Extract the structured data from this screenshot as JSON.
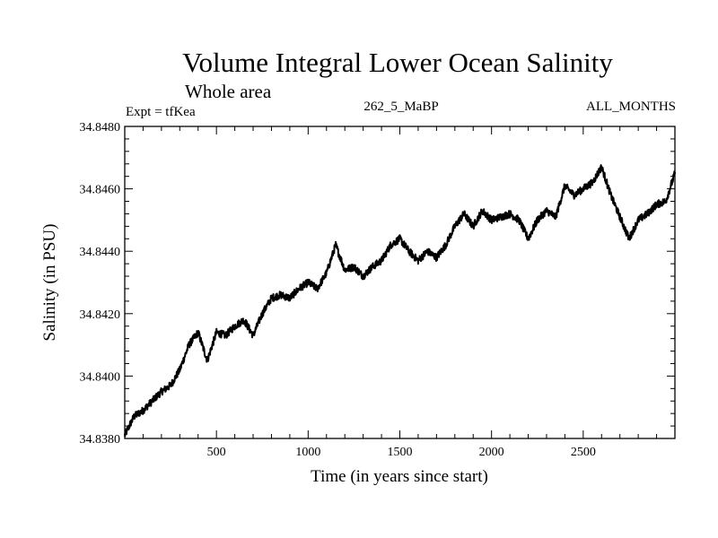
{
  "chart_data": {
    "type": "line",
    "title": "Volume Integral Lower Ocean Salinity",
    "subtitle": "Whole area",
    "annotations": {
      "experiment": "Expt = tfKea",
      "period": "262_5_MaBP",
      "months": "ALL_MONTHS"
    },
    "xlabel": "Time (in years since start)",
    "ylabel": "Salinity (in PSU)",
    "xlim": [
      0,
      3000
    ],
    "ylim": [
      34.838,
      34.848
    ],
    "xticks": [
      500,
      1000,
      1500,
      2000,
      2500
    ],
    "xtick_labels": [
      "500",
      "1000",
      "1500",
      "2000",
      "2500"
    ],
    "yticks": [
      34.838,
      34.84,
      34.842,
      34.844,
      34.846,
      34.848
    ],
    "ytick_labels": [
      "34.8380",
      "34.8400",
      "34.8420",
      "34.8440",
      "34.8460",
      "34.8480"
    ],
    "grid": false,
    "series": [
      {
        "color": "#000000",
        "x": [
          0,
          50,
          100,
          150,
          200,
          250,
          300,
          350,
          400,
          450,
          500,
          550,
          600,
          650,
          700,
          750,
          800,
          850,
          900,
          950,
          1000,
          1050,
          1100,
          1150,
          1200,
          1250,
          1300,
          1350,
          1400,
          1450,
          1500,
          1550,
          1600,
          1650,
          1700,
          1750,
          1800,
          1850,
          1900,
          1950,
          2000,
          2050,
          2100,
          2150,
          2200,
          2250,
          2300,
          2350,
          2400,
          2450,
          2500,
          2550,
          2600,
          2650,
          2700,
          2750,
          2800,
          2850,
          2900,
          2950,
          3000
        ],
        "values": [
          34.8381,
          34.8387,
          34.8389,
          34.8392,
          34.8395,
          34.8397,
          34.8402,
          34.841,
          34.8414,
          34.8405,
          34.8414,
          34.8413,
          34.8416,
          34.8418,
          34.8413,
          34.842,
          34.8425,
          34.8426,
          34.8425,
          34.8428,
          34.843,
          34.8428,
          34.8433,
          34.8442,
          34.8434,
          34.8435,
          34.8432,
          34.8435,
          34.8437,
          34.8442,
          34.8444,
          34.844,
          34.8437,
          34.844,
          34.8438,
          34.8442,
          34.8448,
          34.8452,
          34.8448,
          34.8453,
          34.845,
          34.8451,
          34.8452,
          34.845,
          34.8444,
          34.845,
          34.8453,
          34.8451,
          34.8461,
          34.8458,
          34.846,
          34.8462,
          34.8467,
          34.8458,
          34.8451,
          34.8444,
          34.845,
          34.8452,
          34.8455,
          34.8456,
          34.8465
        ]
      }
    ]
  }
}
